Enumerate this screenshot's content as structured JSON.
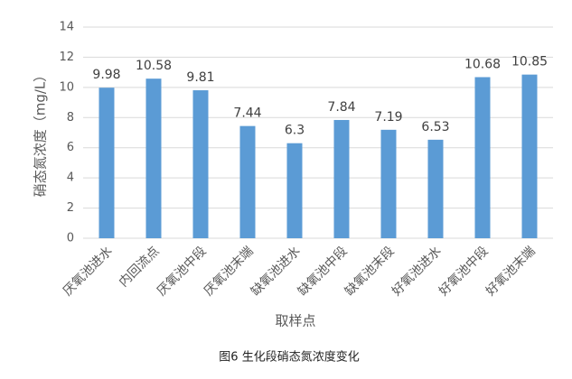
{
  "chart_data": {
    "type": "bar",
    "categories": [
      "厌氧池进水",
      "内回流点",
      "厌氧池中段",
      "厌氧池末端",
      "缺氧池进水",
      "缺氧池中段",
      "缺氧池末段",
      "好氧池进水",
      "好氧池中段",
      "好氧池末端"
    ],
    "values": [
      9.98,
      10.58,
      9.81,
      7.44,
      6.3,
      7.84,
      7.19,
      6.53,
      10.68,
      10.85
    ],
    "color": "#5b9bd5",
    "y_label": "硝态氮浓度（mg/L）",
    "x_label": "取样点",
    "caption": "图6 生化段硝态氮浓度变化",
    "ylim": [
      0,
      14
    ],
    "yticks": [
      0,
      2,
      4,
      6,
      8,
      10,
      12,
      14
    ],
    "grid": true
  }
}
